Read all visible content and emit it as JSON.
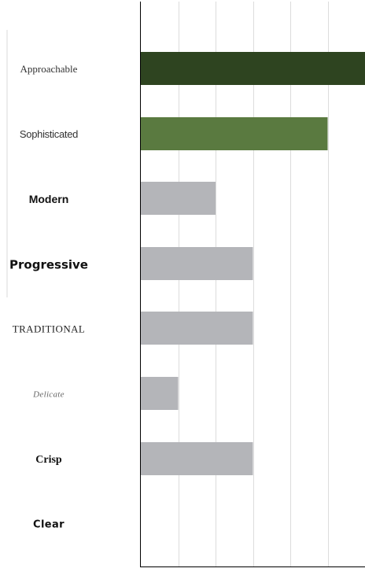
{
  "chart_data": {
    "type": "bar",
    "orientation": "horizontal",
    "title": "",
    "xlabel": "",
    "ylabel": "",
    "grid": true,
    "categories": [
      "Approachable",
      "Sophisticated",
      "Modern",
      "Progressive",
      "TRADITIONAL",
      "Delicate",
      "Crisp",
      "Clear"
    ],
    "values": [
      6,
      5,
      2,
      3,
      3,
      1,
      3,
      0
    ],
    "xlim": [
      0,
      6
    ],
    "colors": {
      "Approachable": "#2e4420",
      "Sophisticated": "#5a7a40",
      "default": "#b4b5b9",
      "grid": "#dcdcdc",
      "axis": "#000000",
      "bracket": "#d8d8d8"
    }
  }
}
